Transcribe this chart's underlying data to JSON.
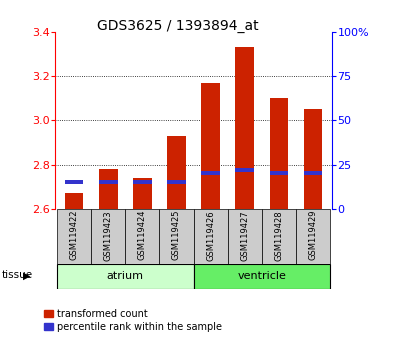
{
  "title": "GDS3625 / 1393894_at",
  "samples": [
    "GSM119422",
    "GSM119423",
    "GSM119424",
    "GSM119425",
    "GSM119426",
    "GSM119427",
    "GSM119428",
    "GSM119429"
  ],
  "transformed_count": [
    2.67,
    2.78,
    2.74,
    2.93,
    3.17,
    3.33,
    3.1,
    3.05
  ],
  "percentile_rank": [
    15,
    15,
    15,
    15,
    20,
    22,
    20,
    20
  ],
  "ymin": 2.6,
  "ymax": 3.4,
  "yticks": [
    2.6,
    2.8,
    3.0,
    3.2,
    3.4
  ],
  "right_yticks": [
    0,
    25,
    50,
    75,
    100
  ],
  "bar_color": "#cc2200",
  "blue_color": "#3333cc",
  "tissue_groups": [
    {
      "label": "atrium",
      "samples": [
        0,
        1,
        2,
        3
      ],
      "color": "#ccffcc"
    },
    {
      "label": "ventricle",
      "samples": [
        4,
        5,
        6,
        7
      ],
      "color": "#66ee66"
    }
  ],
  "sample_bg_color": "#cccccc",
  "grid_color": "#000000",
  "title_fontsize": 10,
  "tick_fontsize": 8,
  "bar_width": 0.55,
  "blue_bar_height": 0.018,
  "legend_items": [
    {
      "label": "transformed count",
      "color": "#cc2200"
    },
    {
      "label": "percentile rank within the sample",
      "color": "#3333cc"
    }
  ]
}
